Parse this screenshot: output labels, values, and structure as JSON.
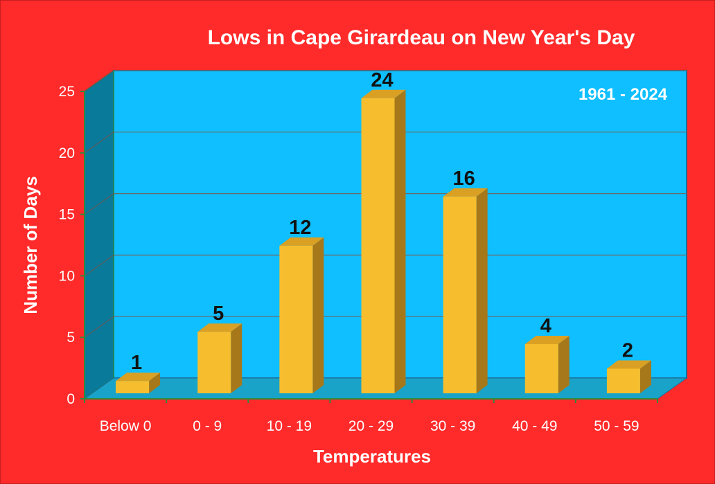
{
  "chart_data": {
    "type": "bar",
    "title": "Lows in Cape Girardeau on New Year's Day",
    "annotation": "1961 - 2024",
    "xlabel": "Temperatures",
    "ylabel": "Number of Days",
    "categories": [
      "Below 0",
      "0 - 9",
      "10 - 19",
      "20 - 29",
      "30 - 39",
      "40 - 49",
      "50 - 59"
    ],
    "values": [
      1,
      5,
      12,
      24,
      16,
      4,
      2
    ],
    "data_labels": [
      "1",
      "5",
      "12",
      "24",
      "16",
      "4",
      "2"
    ],
    "ylim": [
      0,
      25
    ],
    "yticks": [
      0,
      5,
      10,
      15,
      20,
      25
    ],
    "grid": true,
    "legend": "none"
  },
  "colors": {
    "background": "#ff2a2a",
    "plot_wall": "#0fbfff",
    "side_wall": "#0a7a9a",
    "floor": "#1aa3c8",
    "bar_front": "#f6be2e",
    "bar_top": "#d9a024",
    "bar_side": "#a6781a"
  }
}
